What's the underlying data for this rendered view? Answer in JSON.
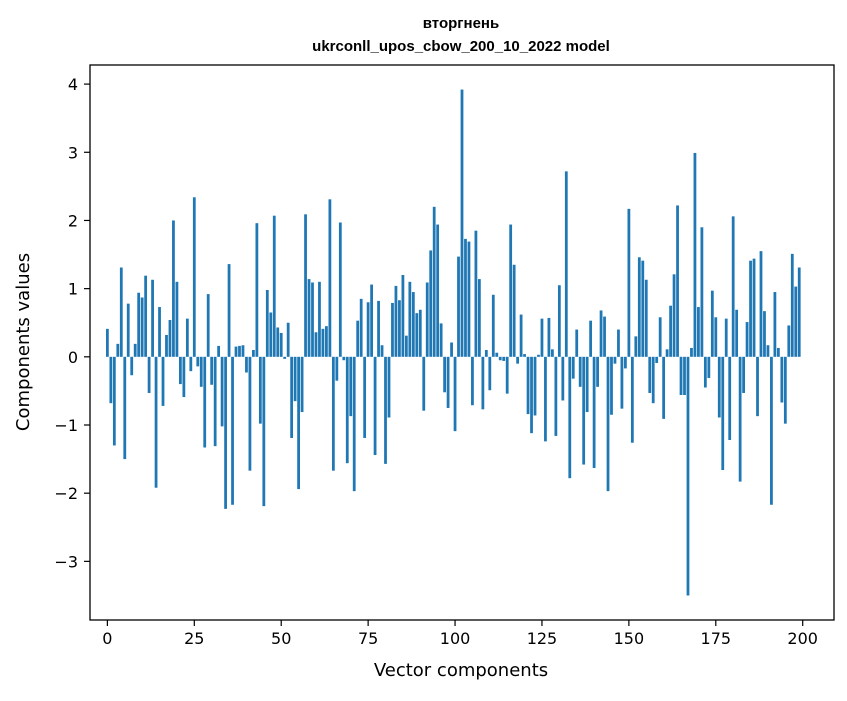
{
  "chart_data": {
    "type": "bar",
    "title": "вторгнень",
    "subtitle": "ukrconll_upos_cbow_200_10_2022 model",
    "xlabel": "Vector components",
    "ylabel": "Components values",
    "xlim": [
      -5,
      209
    ],
    "ylim": [
      -3.86,
      4.28
    ],
    "xticks": [
      0,
      25,
      50,
      75,
      100,
      125,
      150,
      175,
      200
    ],
    "yticks": [
      -3,
      -2,
      -1,
      0,
      1,
      2,
      3,
      4
    ],
    "ytick_labels": [
      "−3",
      "−2",
      "−1",
      "0",
      "1",
      "2",
      "3",
      "4"
    ],
    "grid": false,
    "bar_color": "#1f77b4",
    "x": [
      0,
      1,
      2,
      3,
      4,
      5,
      6,
      7,
      8,
      9,
      10,
      11,
      12,
      13,
      14,
      15,
      16,
      17,
      18,
      19,
      20,
      21,
      22,
      23,
      24,
      25,
      26,
      27,
      28,
      29,
      30,
      31,
      32,
      33,
      34,
      35,
      36,
      37,
      38,
      39,
      40,
      41,
      42,
      43,
      44,
      45,
      46,
      47,
      48,
      49,
      50,
      51,
      52,
      53,
      54,
      55,
      56,
      57,
      58,
      59,
      60,
      61,
      62,
      63,
      64,
      65,
      66,
      67,
      68,
      69,
      70,
      71,
      72,
      73,
      74,
      75,
      76,
      77,
      78,
      79,
      80,
      81,
      82,
      83,
      84,
      85,
      86,
      87,
      88,
      89,
      90,
      91,
      92,
      93,
      94,
      95,
      96,
      97,
      98,
      99,
      100,
      101,
      102,
      103,
      104,
      105,
      106,
      107,
      108,
      109,
      110,
      111,
      112,
      113,
      114,
      115,
      116,
      117,
      118,
      119,
      120,
      121,
      122,
      123,
      124,
      125,
      126,
      127,
      128,
      129,
      130,
      131,
      132,
      133,
      134,
      135,
      136,
      137,
      138,
      139,
      140,
      141,
      142,
      143,
      144,
      145,
      146,
      147,
      148,
      149,
      150,
      151,
      152,
      153,
      154,
      155,
      156,
      157,
      158,
      159,
      160,
      161,
      162,
      163,
      164,
      165,
      166,
      167,
      168,
      169,
      170,
      171,
      172,
      173,
      174,
      175,
      176,
      177,
      178,
      179,
      180,
      181,
      182,
      183,
      184,
      185,
      186,
      187,
      188,
      189,
      190,
      191,
      192,
      193,
      194,
      195,
      196,
      197,
      198,
      199
    ],
    "values": [
      0.41,
      -0.68,
      -1.3,
      0.19,
      1.31,
      -1.5,
      0.78,
      -0.27,
      0.19,
      0.94,
      0.87,
      1.19,
      -0.53,
      1.13,
      -1.92,
      0.73,
      -0.72,
      0.32,
      0.54,
      2.0,
      1.1,
      -0.4,
      -0.59,
      0.56,
      -0.21,
      2.34,
      -0.14,
      -0.44,
      -1.33,
      0.92,
      -0.41,
      -1.31,
      0.16,
      -1.02,
      -2.23,
      1.36,
      -2.17,
      0.15,
      0.16,
      0.17,
      -0.23,
      -1.67,
      0.1,
      1.96,
      -0.98,
      -2.19,
      0.98,
      0.65,
      2.07,
      0.43,
      0.35,
      -0.03,
      0.5,
      -1.19,
      -0.65,
      -1.94,
      -0.81,
      2.09,
      1.14,
      1.09,
      0.36,
      1.1,
      0.41,
      0.45,
      2.31,
      -1.67,
      -0.35,
      1.97,
      -0.05,
      -1.56,
      -0.87,
      -1.97,
      0.53,
      0.85,
      -1.19,
      0.8,
      1.06,
      -1.44,
      0.82,
      0.17,
      -1.57,
      -0.89,
      0.79,
      1.04,
      0.83,
      1.2,
      0.31,
      1.1,
      0.95,
      0.64,
      0.69,
      -0.79,
      1.09,
      1.56,
      2.2,
      1.94,
      0.49,
      -0.52,
      -0.75,
      0.21,
      -1.09,
      1.47,
      3.92,
      1.73,
      1.69,
      -0.71,
      1.85,
      1.14,
      -0.77,
      0.1,
      -0.49,
      0.91,
      0.06,
      -0.05,
      -0.06,
      -0.54,
      1.94,
      1.35,
      -0.1,
      0.62,
      0.04,
      -0.84,
      -1.12,
      -0.86,
      0.03,
      0.56,
      -1.24,
      0.57,
      0.11,
      -1.16,
      1.05,
      -0.64,
      2.72,
      -1.78,
      -0.32,
      0.4,
      -0.44,
      -1.58,
      -0.81,
      0.53,
      -1.63,
      -0.44,
      0.68,
      0.59,
      -1.97,
      -0.85,
      -0.1,
      0.4,
      -0.76,
      -0.17,
      2.17,
      -1.26,
      0.3,
      1.46,
      1.41,
      1.13,
      -0.53,
      -0.68,
      -0.09,
      0.58,
      -0.91,
      0.11,
      0.75,
      1.21,
      2.22,
      -0.56,
      -0.56,
      -3.5,
      0.13,
      2.99,
      0.73,
      1.9,
      -0.45,
      -0.31,
      0.97,
      0.58,
      -0.89,
      -1.66,
      0.56,
      -1.22,
      2.06,
      0.69,
      -1.83,
      -0.53,
      0.51,
      1.41,
      1.44,
      -0.87,
      1.55,
      0.67,
      0.17,
      -2.17,
      0.95,
      0.13,
      -0.67,
      -0.98,
      0.46,
      1.51,
      1.03,
      1.31
    ]
  }
}
